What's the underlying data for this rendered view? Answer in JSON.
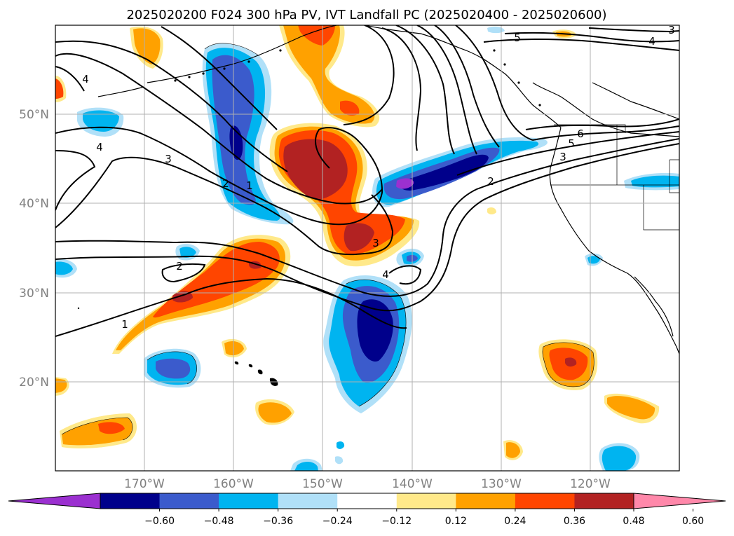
{
  "title": "2025020200 F024 300 hPa PV, IVT Landfall PC (2025020400 - 2025020600)",
  "lat_labels": [
    "50°N",
    "40°N",
    "30°N",
    "20°N"
  ],
  "lon_labels": [
    "170°W",
    "160°W",
    "150°W",
    "140°W",
    "130°W",
    "120°W"
  ],
  "colorbar": {
    "ticks": [
      "−0.60",
      "−0.48",
      "−0.36",
      "−0.24",
      "−0.12",
      "0.12",
      "0.24",
      "0.36",
      "0.48",
      "0.60"
    ],
    "colors": [
      "#9b30d0",
      "#00008b",
      "#3b5bcc",
      "#00b4f0",
      "#b0e0f8",
      "#ffffff",
      "#ffe98a",
      "#ffa100",
      "#ff4500",
      "#b22222",
      "#ff88aa"
    ]
  },
  "contour_labels": [
    "4",
    "4",
    "3",
    "2",
    "1",
    "1",
    "2",
    "3",
    "4",
    "2",
    "3",
    "5",
    "6",
    "5",
    "4",
    "3"
  ]
}
